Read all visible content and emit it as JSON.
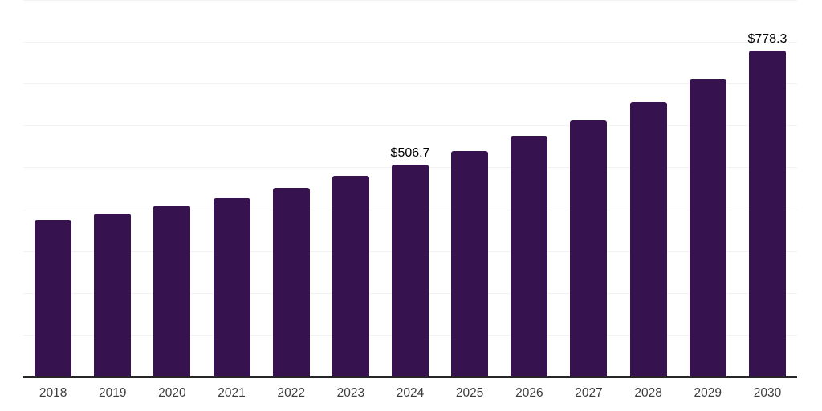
{
  "page": {
    "background": "#ffffff"
  },
  "chart_data": {
    "type": "bar",
    "title": "",
    "xlabel": "",
    "ylabel": "",
    "categories": [
      "2018",
      "2019",
      "2020",
      "2021",
      "2022",
      "2023",
      "2024",
      "2025",
      "2026",
      "2027",
      "2028",
      "2029",
      "2030"
    ],
    "values": [
      374,
      389,
      408,
      427,
      451,
      480,
      506.7,
      539,
      574,
      613,
      656,
      710,
      778.3
    ],
    "data_labels": {
      "2024": "$506.7",
      "2030": "$778.3"
    },
    "ylim": [
      0,
      900
    ],
    "gridline_step": 100,
    "grid": true,
    "legend": false,
    "y_tick_labels_visible": false
  },
  "colors": {
    "bar": "#36124e",
    "gridline": "#f2f2f3",
    "axis_line": "#262626",
    "tick_label": "#3d3d3d",
    "data_label": "#000000",
    "background": "#ffffff"
  }
}
